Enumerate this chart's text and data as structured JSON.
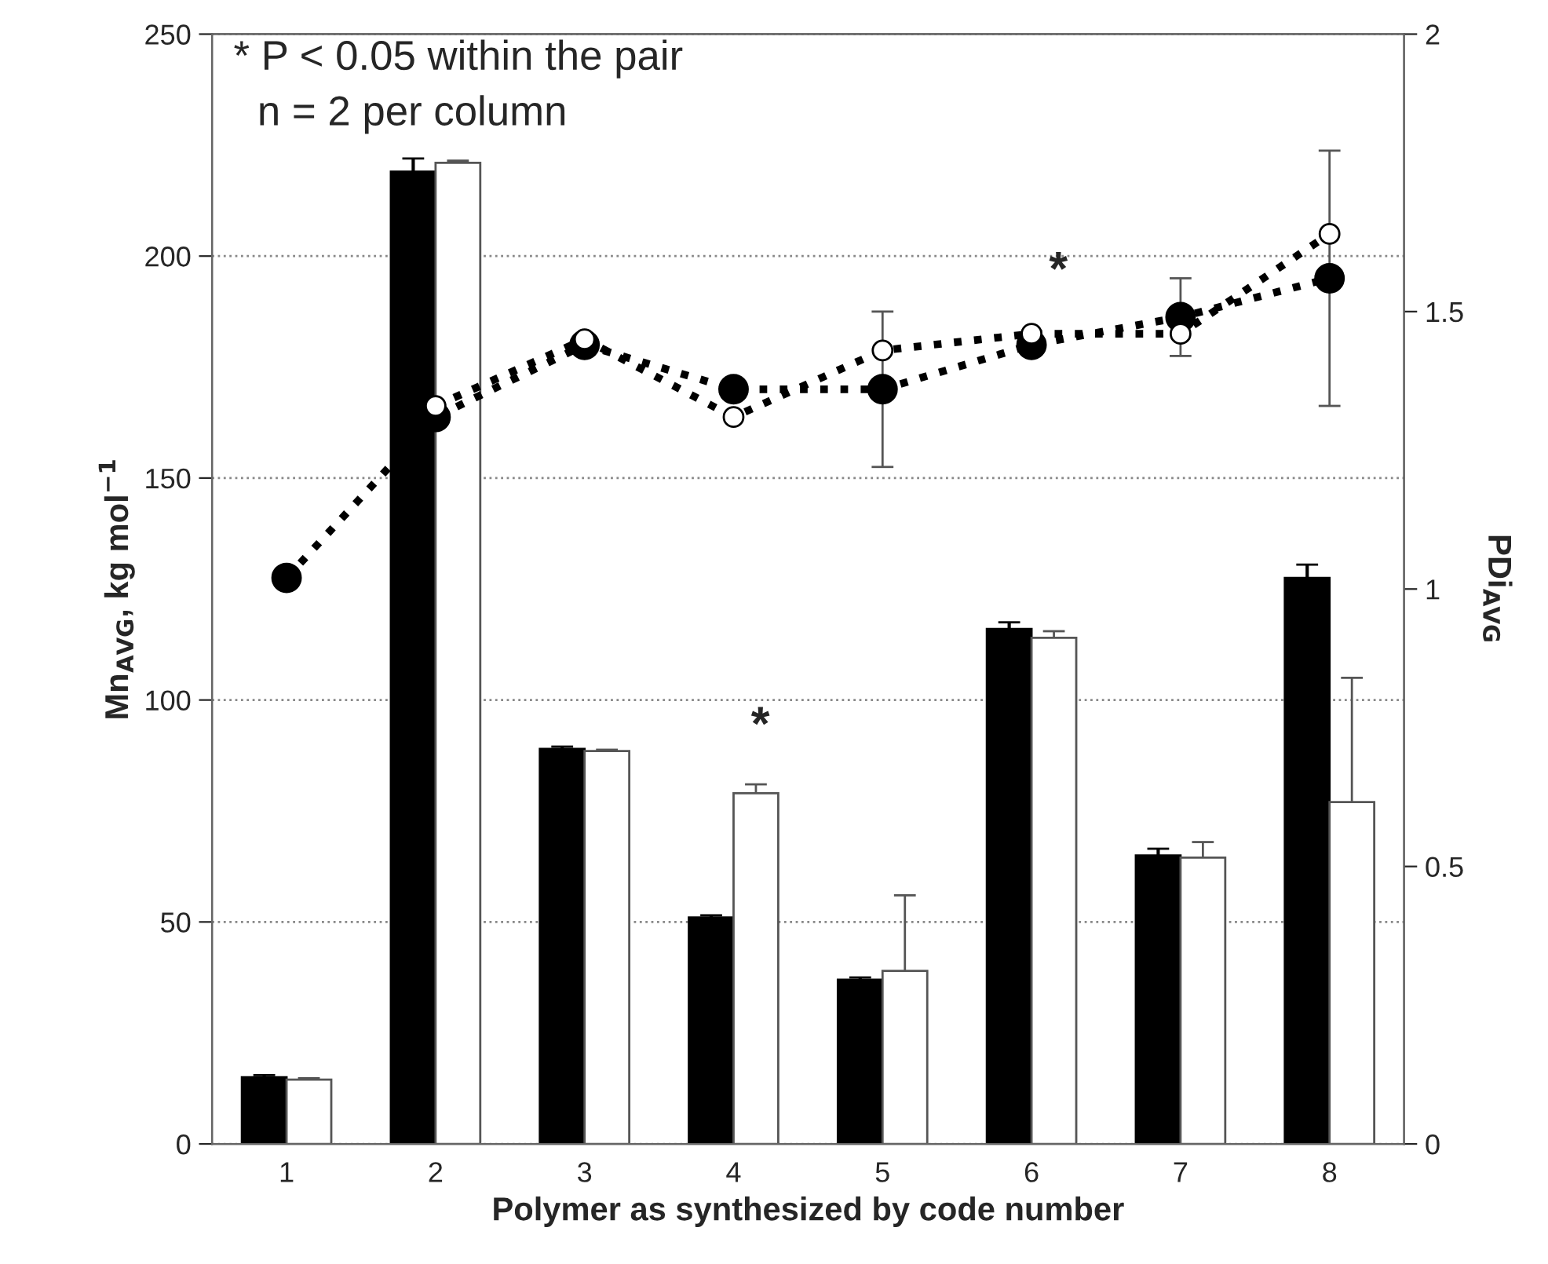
{
  "chart_data": {
    "type": "bar",
    "xlabel": "Polymer as synthesized by code number",
    "ylabel": "Mn$_{AVG}$, kg mol$^{−1}$",
    "y2label": "PDi$_{AVG}$",
    "categories": [
      "1",
      "2",
      "3",
      "4",
      "5",
      "6",
      "7",
      "8"
    ],
    "series": [
      {
        "color": "#000000",
        "values": [
          15,
          219,
          89,
          51,
          37,
          116,
          65,
          127.5
        ],
        "errors": [
          0.5,
          3,
          0.5,
          0.5,
          0.5,
          1.5,
          1.5,
          3
        ]
      },
      {
        "color": "#ffffff",
        "values": [
          14.5,
          221,
          88.5,
          79,
          39,
          114,
          64.5,
          77
        ],
        "errors": [
          0.3,
          0.5,
          0.3,
          2,
          17,
          1.5,
          3.5,
          28
        ]
      },
      {
        "type": "line",
        "axis": "y2",
        "color": "#000000",
        "marker": "circle",
        "line_style": "dotted",
        "values": [
          1.02,
          1.31,
          1.44,
          1.36,
          1.36,
          1.44,
          1.49,
          1.56
        ],
        "errors": [
          null,
          null,
          null,
          null,
          0.14,
          null,
          0.07,
          0.23
        ]
      },
      {
        "type": "line",
        "axis": "y2",
        "color": "#ffffff",
        "marker": "circle",
        "line_style": "dotted",
        "values": [
          null,
          1.33,
          1.45,
          1.31,
          1.43,
          1.46,
          1.46,
          1.64
        ],
        "errors": [
          null,
          null,
          null,
          null,
          null,
          null,
          null,
          null
        ]
      }
    ],
    "ylim": [
      0,
      250
    ],
    "yticks": [
      0,
      50,
      100,
      150,
      200,
      250
    ],
    "y2lim": [
      0,
      2
    ],
    "y2ticks": [
      0,
      0.5,
      1,
      1.5,
      2
    ],
    "grid": "y",
    "legend": false,
    "annotations": [
      "* P < 0.05 within the pair",
      "n = 2 per column",
      "*",
      "*"
    ]
  }
}
